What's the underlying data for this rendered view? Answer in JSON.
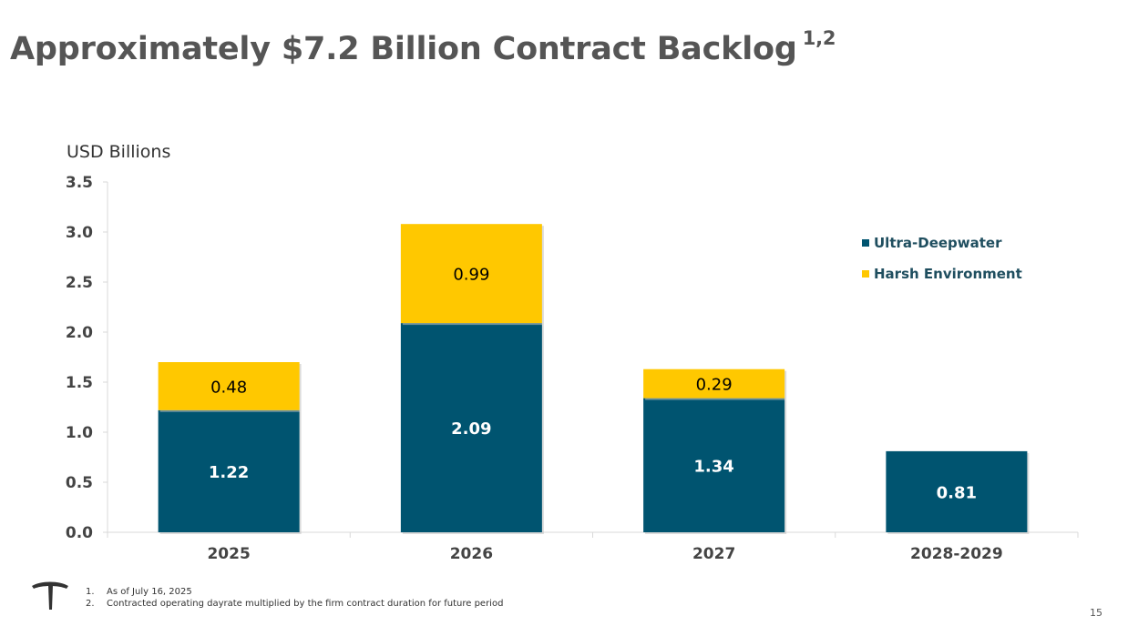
{
  "title": "Approximately $7.2 Billion Contract Backlog",
  "title_superscript": "1,2",
  "colors": {
    "ultra_deepwater": "#005470",
    "harsh_environment": "#FFC800",
    "title": "#555555"
  },
  "chart_data": {
    "type": "bar",
    "stacked": true,
    "title": "",
    "xlabel": "",
    "ylabel": "USD Billions",
    "ylim": [
      0,
      3.5
    ],
    "yticks": [
      "0.0",
      "0.5",
      "1.0",
      "1.5",
      "2.0",
      "2.5",
      "3.0",
      "3.5"
    ],
    "categories": [
      "2025",
      "2026",
      "2027",
      "2028-2029"
    ],
    "series": [
      {
        "name": "Ultra-Deepwater",
        "values": [
          1.22,
          2.09,
          1.34,
          0.81
        ],
        "labels": [
          "1.22",
          "2.09",
          "1.34",
          "0.81"
        ]
      },
      {
        "name": "Harsh Environment",
        "values": [
          0.48,
          0.99,
          0.29,
          0
        ],
        "labels": [
          "0.48",
          "0.99",
          "0.29",
          ""
        ]
      }
    ],
    "legend_position": "right"
  },
  "footnotes": [
    {
      "num": "1.",
      "text": "As of July 16, 2025"
    },
    {
      "num": "2.",
      "text": "Contracted operating dayrate multiplied by the firm contract duration for future period"
    }
  ],
  "page_number": "15",
  "logo_icon": "company-logo-icon"
}
